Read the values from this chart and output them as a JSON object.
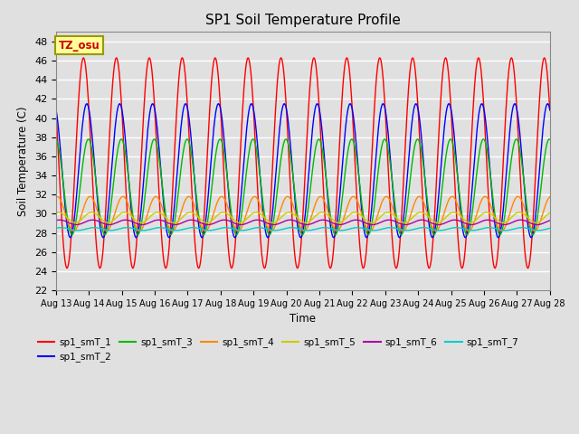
{
  "title": "SP1 Soil Temperature Profile",
  "xlabel": "Time",
  "ylabel": "Soil Temperature (C)",
  "ylim": [
    22,
    49
  ],
  "annotation_text": "TZ_osu",
  "annotation_color": "#CC0000",
  "annotation_bg": "#FFFF99",
  "annotation_border": "#999900",
  "background_color": "#E0E0E0",
  "grid_color": "#FFFFFF",
  "series": [
    {
      "label": "sp1_smT_1",
      "color": "#FF0000",
      "amp": 11.0,
      "mean": 35.3,
      "phase": 0.0
    },
    {
      "label": "sp1_smT_2",
      "color": "#0000FF",
      "amp": 7.0,
      "mean": 34.5,
      "phase": 0.1
    },
    {
      "label": "sp1_smT_3",
      "color": "#00BB00",
      "amp": 5.0,
      "mean": 32.8,
      "phase": 0.15
    },
    {
      "label": "sp1_smT_4",
      "color": "#FF8800",
      "amp": 1.8,
      "mean": 30.0,
      "phase": 0.2
    },
    {
      "label": "sp1_smT_5",
      "color": "#CCCC00",
      "amp": 0.55,
      "mean": 29.6,
      "phase": 0.25
    },
    {
      "label": "sp1_smT_6",
      "color": "#AA00AA",
      "amp": 0.25,
      "mean": 29.1,
      "phase": 0.28
    },
    {
      "label": "sp1_smT_7",
      "color": "#00CCCC",
      "amp": 0.15,
      "mean": 28.4,
      "phase": 0.32
    }
  ],
  "tick_dates": [
    "Aug 13",
    "Aug 14",
    "Aug 15",
    "Aug 16",
    "Aug 17",
    "Aug 18",
    "Aug 19",
    "Aug 20",
    "Aug 21",
    "Aug 22",
    "Aug 23",
    "Aug 24",
    "Aug 25",
    "Aug 26",
    "Aug 27",
    "Aug 28"
  ]
}
